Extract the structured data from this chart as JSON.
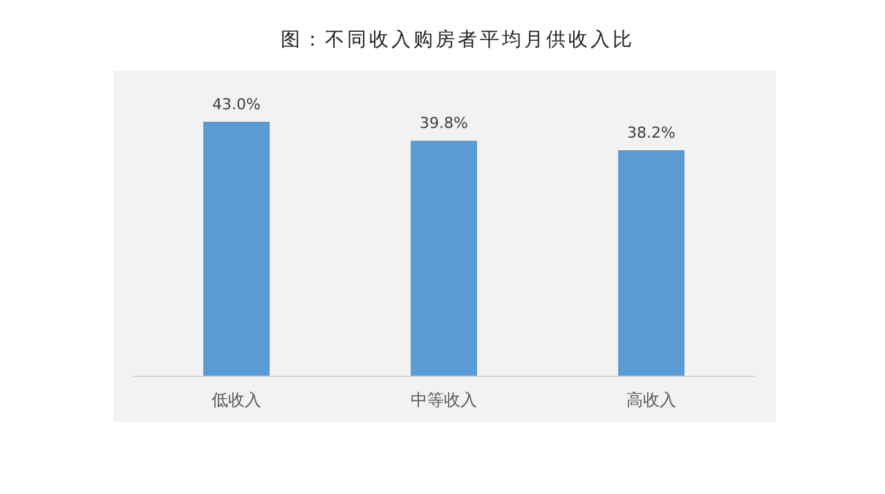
{
  "chart_data": {
    "type": "bar",
    "title": "图：不同收入购房者平均月供收入比",
    "categories": [
      "低收入",
      "中等收入",
      "高收入"
    ],
    "values": [
      43.0,
      39.8,
      38.2
    ],
    "color": "#5b9bd5",
    "value_labels": [
      "43.0%",
      "39.8%",
      "38.2%"
    ],
    "tick_labels": "x"
  }
}
